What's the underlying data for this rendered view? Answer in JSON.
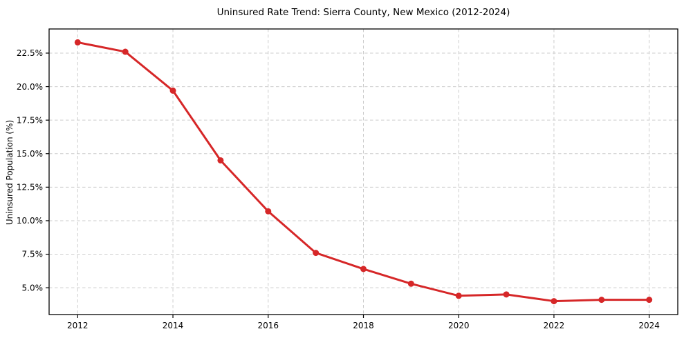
{
  "chart_data": {
    "type": "line",
    "title": "Uninsured Rate Trend: Sierra County, New Mexico (2012-2024)",
    "xlabel": "",
    "ylabel": "Uninsured Population (%)",
    "x": [
      2012,
      2013,
      2014,
      2015,
      2016,
      2017,
      2018,
      2019,
      2020,
      2021,
      2022,
      2023,
      2024
    ],
    "series": [
      {
        "name": "Uninsured Population (%)",
        "values": [
          23.3,
          22.6,
          19.7,
          14.5,
          10.7,
          7.6,
          6.4,
          5.3,
          4.4,
          4.5,
          4.0,
          4.1,
          4.1
        ]
      }
    ],
    "xlim": [
      2011.4,
      2024.6
    ],
    "ylim": [
      3.0,
      24.3
    ],
    "x_ticks": [
      2012,
      2014,
      2016,
      2018,
      2020,
      2022,
      2024
    ],
    "x_tick_labels": [
      "2012",
      "2014",
      "2016",
      "2018",
      "2020",
      "2022",
      "2024"
    ],
    "y_ticks": [
      5.0,
      7.5,
      10.0,
      12.5,
      15.0,
      17.5,
      20.0,
      22.5
    ],
    "y_tick_labels": [
      "5.0%",
      "7.5%",
      "10.0%",
      "12.5%",
      "15.0%",
      "17.5%",
      "20.0%",
      "22.5%"
    ],
    "grid": true,
    "grid_style": "dashed",
    "legend_position": "none",
    "marker": "circle",
    "colors": {
      "line": "#d62728",
      "marker": "#d62728",
      "grid": "#cccccc",
      "spine": "#000000",
      "background": "#ffffff",
      "text": "#000000"
    }
  }
}
